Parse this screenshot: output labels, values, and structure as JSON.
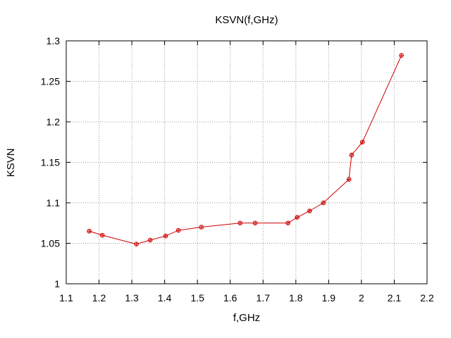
{
  "chart_data": {
    "type": "line",
    "title": "KSVN(f,GHz)",
    "xlabel": "f,GHz",
    "ylabel": "KSVN",
    "xlim": [
      1.1,
      2.2
    ],
    "ylim": [
      1.0,
      1.3
    ],
    "xticks": [
      1.1,
      1.2,
      1.3,
      1.4,
      1.5,
      1.6,
      1.7,
      1.8,
      1.9,
      2.0,
      2.1,
      2.2
    ],
    "xtick_labels": [
      "1.1",
      "1.2",
      "1.3",
      "1.4",
      "1.5",
      "1.6",
      "1.7",
      "1.8",
      "1.9",
      "2",
      "2.1",
      "2.2"
    ],
    "yticks": [
      1.0,
      1.05,
      1.1,
      1.15,
      1.2,
      1.25,
      1.3
    ],
    "ytick_labels": [
      "1",
      "1.05",
      "1.1",
      "1.15",
      "1.2",
      "1.25",
      "1.3"
    ],
    "grid": true,
    "series": [
      {
        "color": "#cc0000",
        "marker": "circle-plus",
        "x": [
          1.17,
          1.21,
          1.314,
          1.356,
          1.403,
          1.442,
          1.512,
          1.63,
          1.676,
          1.776,
          1.804,
          1.842,
          1.884,
          1.962,
          1.97,
          2.003,
          2.122
        ],
        "y": [
          1.065,
          1.06,
          1.049,
          1.054,
          1.059,
          1.066,
          1.07,
          1.075,
          1.075,
          1.075,
          1.082,
          1.09,
          1.1,
          1.129,
          1.159,
          1.175,
          1.282
        ]
      }
    ]
  }
}
